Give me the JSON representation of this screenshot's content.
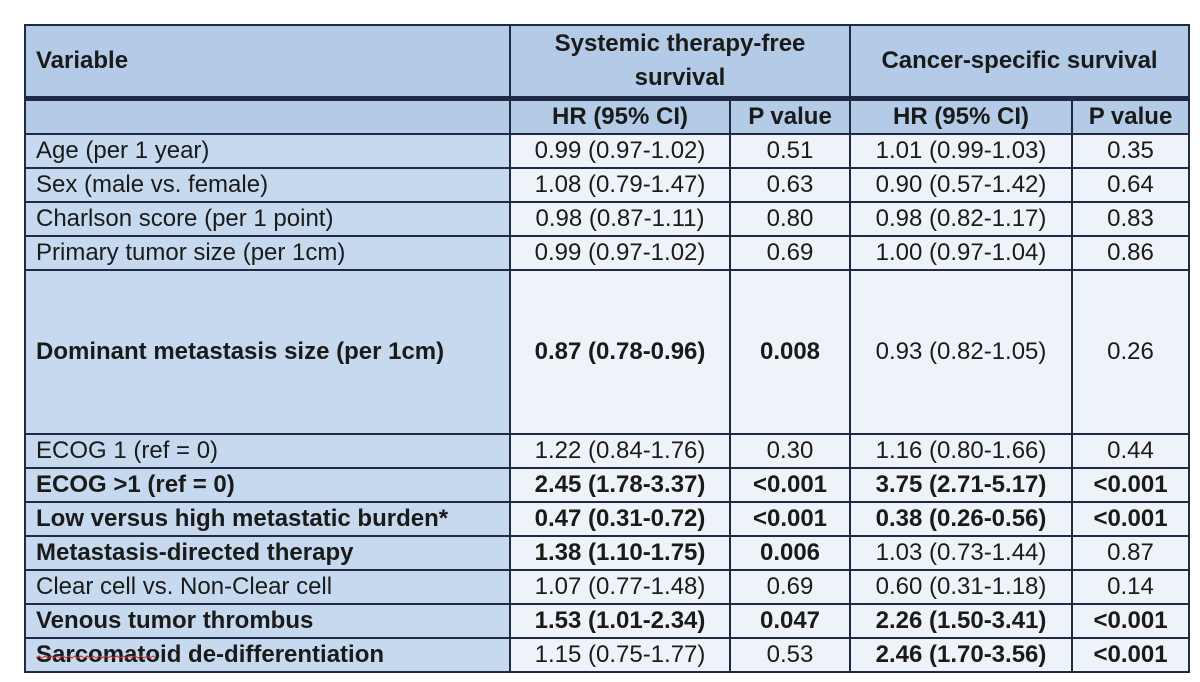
{
  "header": {
    "variable_label": "Variable",
    "group1_title": "Systemic therapy-free survival",
    "group2_title": "Cancer-specific survival",
    "col_hr1": "HR (95% CI)",
    "col_p1": "P value",
    "col_hr2": "HR (95% CI)",
    "col_p2": "P value"
  },
  "rows": [
    {
      "variable": "Age (per 1 year)",
      "hr1": "0.99 (0.97-1.02)",
      "p1": "0.51",
      "hr2": "1.01 (0.99-1.03)",
      "p2": "0.35"
    },
    {
      "variable": "Sex (male vs. female)",
      "hr1": "1.08 (0.79-1.47)",
      "p1": "0.63",
      "hr2": "0.90 (0.57-1.42)",
      "p2": "0.64"
    },
    {
      "variable": "Charlson score (per 1 point)",
      "hr1": "0.98 (0.87-1.11)",
      "p1": "0.80",
      "hr2": "0.98 (0.82-1.17)",
      "p2": "0.83"
    },
    {
      "variable": "Primary tumor size (per 1cm)",
      "hr1": "0.99 (0.97-1.02)",
      "p1": "0.69",
      "hr2": "1.00 (0.97-1.04)",
      "p2": "0.86"
    },
    {
      "variable": "Dominant metastasis size (per 1cm)",
      "hr1": "0.87 (0.78-0.96)",
      "p1": "0.008",
      "hr2": "0.93 (0.82-1.05)",
      "p2": "0.26"
    },
    {
      "variable": "ECOG 1 (ref = 0)",
      "hr1": "1.22 (0.84-1.76)",
      "p1": "0.30",
      "hr2": "1.16 (0.80-1.66)",
      "p2": "0.44"
    },
    {
      "variable": "ECOG >1 (ref = 0)",
      "hr1": "2.45 (1.78-3.37)",
      "p1": "<0.001",
      "hr2": "3.75 (2.71-5.17)",
      "p2": "<0.001"
    },
    {
      "variable": "Low versus high metastatic burden*",
      "hr1": "0.47 (0.31-0.72)",
      "p1": "<0.001",
      "hr2": "0.38 (0.26-0.56)",
      "p2": "<0.001"
    },
    {
      "variable": "Metastasis-directed therapy",
      "hr1": "1.38 (1.10-1.75)",
      "p1": "0.006",
      "hr2": "1.03 (0.73-1.44)",
      "p2": "0.87"
    },
    {
      "variable": "Clear cell vs. Non-Clear cell",
      "hr1": "1.07 (0.77-1.48)",
      "p1": "0.69",
      "hr2": "0.60 (0.31-1.18)",
      "p2": "0.14"
    },
    {
      "variable": "Venous tumor thrombus",
      "hr1": "1.53 (1.01-2.34)",
      "p1": "0.047",
      "hr2": "2.26 (1.50-3.41)",
      "p2": "<0.001"
    },
    {
      "variable": "Sarcomatoid de-differentiation",
      "hr1": "1.15 (0.75-1.77)",
      "p1": "0.53",
      "hr2": "2.46 (1.70-3.56)",
      "p2": "<0.001"
    }
  ],
  "colors": {
    "header_bg": "#b3cbe6",
    "label_bg": "#c6d9ee",
    "cell_bg": "#eef3fa",
    "border": "#1f2a44"
  }
}
